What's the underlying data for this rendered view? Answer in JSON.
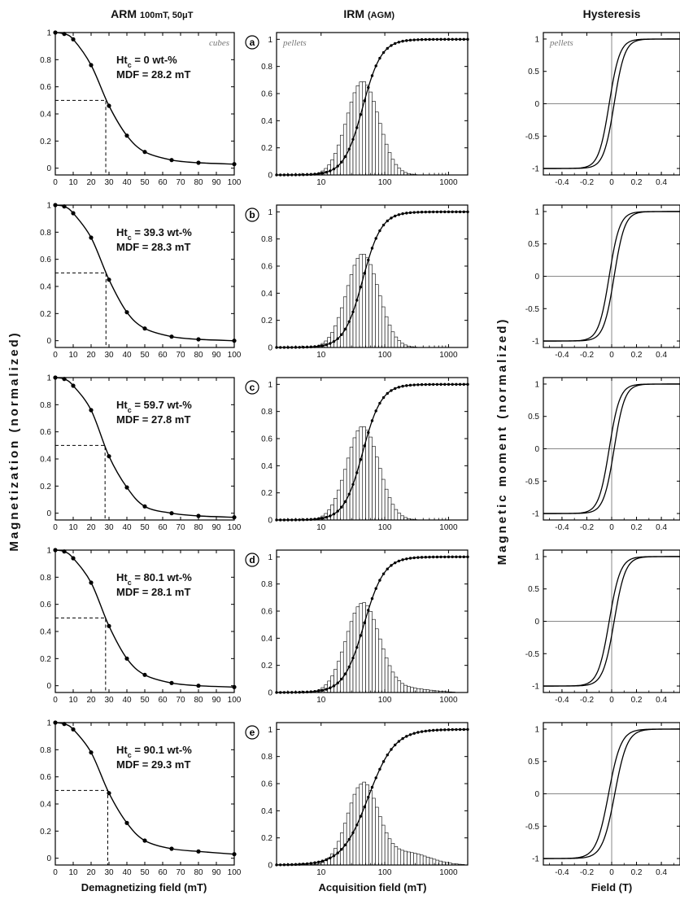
{
  "columns": {
    "arm": {
      "title": "ARM",
      "subtitle": "100mT, 50μT"
    },
    "irm": {
      "title": "IRM",
      "subtitle": "(AGM)"
    },
    "hyst": {
      "title": "Hysteresis"
    }
  },
  "axis_labels": {
    "arm_x": "Demagnetizing field (mT)",
    "arm_y": "Magnetization (normalized)",
    "irm_x": "Acquisition field (mT)",
    "hyst_x": "Field (T)",
    "hyst_y": "Magnetic moment (normalized)"
  },
  "notes": {
    "cubes": "cubes",
    "pellets": "pellets"
  },
  "chart_data": [
    {
      "type": "line",
      "panel": "a",
      "column": "ARM",
      "annotation": {
        "ht_label": "Htc = 0 wt-%",
        "mdf_label": "MDF = 28.2 mT"
      },
      "mdf": 28.2,
      "x": [
        0,
        5,
        10,
        20,
        30,
        40,
        50,
        65,
        80,
        100
      ],
      "y": [
        1.0,
        0.99,
        0.95,
        0.76,
        0.46,
        0.24,
        0.12,
        0.06,
        0.04,
        0.03
      ],
      "xlim": [
        0,
        100
      ],
      "ylim": [
        -0.05,
        1.0
      ],
      "xticks": [
        0,
        10,
        20,
        30,
        40,
        50,
        60,
        70,
        80,
        90,
        100
      ],
      "yticks": [
        0,
        0.2,
        0.4,
        0.6,
        0.8,
        1
      ]
    },
    {
      "type": "line",
      "panel": "b",
      "column": "ARM",
      "annotation": {
        "ht_label": "Htc = 39.3 wt-%",
        "mdf_label": "MDF = 28.3 mT"
      },
      "mdf": 28.3,
      "x": [
        0,
        5,
        10,
        20,
        30,
        40,
        50,
        65,
        80,
        100
      ],
      "y": [
        1.0,
        0.99,
        0.94,
        0.76,
        0.45,
        0.21,
        0.09,
        0.03,
        0.01,
        0.0
      ],
      "xlim": [
        0,
        100
      ],
      "ylim": [
        -0.05,
        1.0
      ],
      "xticks": [
        0,
        10,
        20,
        30,
        40,
        50,
        60,
        70,
        80,
        90,
        100
      ],
      "yticks": [
        0,
        0.2,
        0.4,
        0.6,
        0.8,
        1
      ]
    },
    {
      "type": "line",
      "panel": "c",
      "column": "ARM",
      "annotation": {
        "ht_label": "Htc = 59.7 wt-%",
        "mdf_label": "MDF = 27.8 mT"
      },
      "mdf": 27.8,
      "x": [
        0,
        5,
        10,
        20,
        30,
        40,
        50,
        65,
        80,
        100
      ],
      "y": [
        1.0,
        0.99,
        0.94,
        0.76,
        0.42,
        0.19,
        0.05,
        0.0,
        -0.02,
        -0.03
      ],
      "xlim": [
        0,
        100
      ],
      "ylim": [
        -0.05,
        1.0
      ],
      "xticks": [
        0,
        10,
        20,
        30,
        40,
        50,
        60,
        70,
        80,
        90,
        100
      ],
      "yticks": [
        0,
        0.2,
        0.4,
        0.6,
        0.8,
        1
      ]
    },
    {
      "type": "line",
      "panel": "d",
      "column": "ARM",
      "annotation": {
        "ht_label": "Htc = 80.1 wt-%",
        "mdf_label": "MDF = 28.1 mT"
      },
      "mdf": 28.1,
      "x": [
        0,
        5,
        10,
        20,
        30,
        40,
        50,
        65,
        80,
        100
      ],
      "y": [
        1.0,
        0.99,
        0.94,
        0.76,
        0.44,
        0.2,
        0.08,
        0.02,
        0.0,
        -0.01
      ],
      "xlim": [
        0,
        100
      ],
      "ylim": [
        -0.05,
        1.0
      ],
      "xticks": [
        0,
        10,
        20,
        30,
        40,
        50,
        60,
        70,
        80,
        90,
        100
      ],
      "yticks": [
        0,
        0.2,
        0.4,
        0.6,
        0.8,
        1
      ]
    },
    {
      "type": "line",
      "panel": "e",
      "column": "ARM",
      "annotation": {
        "ht_label": "Htc = 90.1 wt-%",
        "mdf_label": "MDF = 29.3 mT"
      },
      "mdf": 29.3,
      "x": [
        0,
        5,
        10,
        20,
        30,
        40,
        50,
        65,
        80,
        100
      ],
      "y": [
        1.0,
        0.99,
        0.95,
        0.78,
        0.48,
        0.26,
        0.13,
        0.07,
        0.05,
        0.03
      ],
      "xlim": [
        0,
        100
      ],
      "ylim": [
        -0.05,
        1.0
      ],
      "xticks": [
        0,
        10,
        20,
        30,
        40,
        50,
        60,
        70,
        80,
        90,
        100
      ],
      "yticks": [
        0,
        0.2,
        0.4,
        0.6,
        0.8,
        1
      ]
    },
    {
      "type": "bar+line",
      "panel": "a",
      "column": "IRM",
      "xscale": "log",
      "xlim": [
        2,
        2000
      ],
      "ylim": [
        0,
        1.05
      ],
      "xticks": [
        10,
        100,
        1000
      ],
      "yticks": [
        0,
        0.2,
        0.4,
        0.6,
        0.8,
        1
      ],
      "cumulative": {
        "half_field_mT": 45,
        "dispersion": 0.25
      },
      "histogram": {
        "peak_mT": 45,
        "peak_height": 0.69,
        "width_log10": 0.25,
        "tail": 0
      }
    },
    {
      "type": "bar+line",
      "panel": "b",
      "column": "IRM",
      "xscale": "log",
      "xlim": [
        2,
        2000
      ],
      "ylim": [
        0,
        1.05
      ],
      "xticks": [
        10,
        100,
        1000
      ],
      "yticks": [
        0,
        0.2,
        0.4,
        0.6,
        0.8,
        1
      ],
      "cumulative": {
        "half_field_mT": 45,
        "dispersion": 0.25
      },
      "histogram": {
        "peak_mT": 45,
        "peak_height": 0.69,
        "width_log10": 0.25,
        "tail": 0
      }
    },
    {
      "type": "bar+line",
      "panel": "c",
      "column": "IRM",
      "xscale": "log",
      "xlim": [
        2,
        2000
      ],
      "ylim": [
        0,
        1.05
      ],
      "xticks": [
        10,
        100,
        1000
      ],
      "yticks": [
        0,
        0.2,
        0.4,
        0.6,
        0.8,
        1
      ],
      "cumulative": {
        "half_field_mT": 45,
        "dispersion": 0.25
      },
      "histogram": {
        "peak_mT": 45,
        "peak_height": 0.69,
        "width_log10": 0.25,
        "tail": 0
      }
    },
    {
      "type": "bar+line",
      "panel": "d",
      "column": "IRM",
      "xscale": "log",
      "xlim": [
        2,
        2000
      ],
      "ylim": [
        0,
        1.05
      ],
      "xticks": [
        10,
        100,
        1000
      ],
      "yticks": [
        0,
        0.2,
        0.4,
        0.6,
        0.8,
        1
      ],
      "cumulative": {
        "half_field_mT": 47,
        "dispersion": 0.27
      },
      "histogram": {
        "peak_mT": 45,
        "peak_height": 0.66,
        "width_log10": 0.26,
        "tail": 0.03
      }
    },
    {
      "type": "bar+line",
      "panel": "e",
      "column": "IRM",
      "xscale": "log",
      "xlim": [
        2,
        2000
      ],
      "ylim": [
        0,
        1.05
      ],
      "xticks": [
        10,
        100,
        1000
      ],
      "yticks": [
        0,
        0.2,
        0.4,
        0.6,
        0.8,
        1
      ],
      "cumulative": {
        "half_field_mT": 55,
        "dispersion": 0.35
      },
      "histogram": {
        "peak_mT": 45,
        "peak_height": 0.6,
        "width_log10": 0.24,
        "tail": 0.09
      }
    },
    {
      "type": "line",
      "panel": "a",
      "column": "Hysteresis",
      "xlim": [
        -0.55,
        0.55
      ],
      "ylim": [
        -1.1,
        1.1
      ],
      "xticks": [
        -0.4,
        -0.2,
        0,
        0.2,
        0.4
      ],
      "yticks": [
        -1,
        -0.5,
        0,
        0.5,
        1
      ],
      "loop": {
        "coercivity_T": 0.02,
        "slope_T": 0.085
      }
    },
    {
      "type": "line",
      "panel": "b",
      "column": "Hysteresis",
      "xlim": [
        -0.55,
        0.55
      ],
      "ylim": [
        -1.1,
        1.1
      ],
      "xticks": [
        -0.4,
        -0.2,
        0,
        0.2,
        0.4
      ],
      "yticks": [
        -1,
        -0.5,
        0,
        0.5,
        1
      ],
      "loop": {
        "coercivity_T": 0.02,
        "slope_T": 0.085
      }
    },
    {
      "type": "line",
      "panel": "c",
      "column": "Hysteresis",
      "xlim": [
        -0.55,
        0.55
      ],
      "ylim": [
        -1.1,
        1.1
      ],
      "xticks": [
        -0.4,
        -0.2,
        0,
        0.2,
        0.4
      ],
      "yticks": [
        -1,
        -0.5,
        0,
        0.5,
        1
      ],
      "loop": {
        "coercivity_T": 0.02,
        "slope_T": 0.085
      }
    },
    {
      "type": "line",
      "panel": "d",
      "column": "Hysteresis",
      "xlim": [
        -0.55,
        0.55
      ],
      "ylim": [
        -1.1,
        1.1
      ],
      "xticks": [
        -0.4,
        -0.2,
        0,
        0.2,
        0.4
      ],
      "yticks": [
        -1,
        -0.5,
        0,
        0.5,
        1
      ],
      "loop": {
        "coercivity_T": 0.02,
        "slope_T": 0.09
      }
    },
    {
      "type": "line",
      "panel": "e",
      "column": "Hysteresis",
      "xlim": [
        -0.55,
        0.55
      ],
      "ylim": [
        -1.1,
        1.1
      ],
      "xticks": [
        -0.4,
        -0.2,
        0,
        0.2,
        0.4
      ],
      "yticks": [
        -1,
        -0.5,
        0,
        0.5,
        1
      ],
      "loop": {
        "coercivity_T": 0.025,
        "slope_T": 0.1
      }
    }
  ]
}
